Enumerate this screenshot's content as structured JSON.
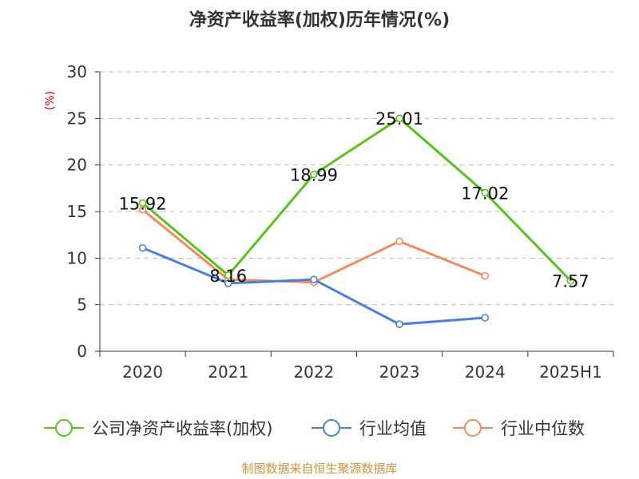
{
  "chart_data": {
    "type": "line",
    "title": "净资产收益率(加权)历年情况(%)",
    "ylabel": "(%)",
    "xlabel": "",
    "categories": [
      "2020",
      "2021",
      "2022",
      "2023",
      "2024",
      "2025H1"
    ],
    "ylim": [
      0,
      30
    ],
    "yticks": [
      0,
      5,
      10,
      15,
      20,
      25,
      30
    ],
    "grid": "horizontal-dashed",
    "legend_position": "bottom",
    "series": [
      {
        "name": "公司净资产收益率(加权)",
        "color": "#58c21d",
        "values": [
          15.92,
          8.16,
          18.99,
          25.01,
          17.02,
          7.57
        ],
        "data_labels": [
          "15.92",
          "8.16",
          "18.99",
          "25.01",
          "17.02",
          "7.57"
        ]
      },
      {
        "name": "行业均值",
        "color": "#4a7fdc",
        "values": [
          11.1,
          7.3,
          7.7,
          2.9,
          3.6,
          null
        ]
      },
      {
        "name": "行业中位数",
        "color": "#f38a5b",
        "values": [
          15.2,
          7.7,
          7.4,
          11.8,
          8.1,
          null
        ]
      }
    ]
  },
  "source": "制图数据来自恒生聚源数据库"
}
